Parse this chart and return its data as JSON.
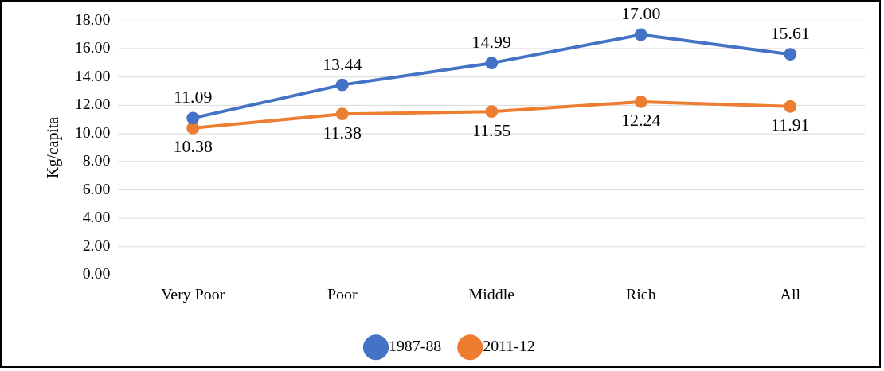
{
  "chart_data": {
    "type": "line",
    "ylabel": "Kg/capita",
    "categories": [
      "Very Poor",
      "Poor",
      "Middle",
      "Rich",
      "All"
    ],
    "series": [
      {
        "name": "1987-88",
        "color": "#4472c4",
        "values": [
          11.09,
          13.44,
          14.99,
          17.0,
          15.61
        ],
        "value_labels": [
          "11.09",
          "13.44",
          "14.99",
          "17.00",
          "15.61"
        ]
      },
      {
        "name": "2011-12",
        "color": "#ed7d31",
        "values": [
          10.38,
          11.38,
          11.55,
          12.24,
          11.91
        ],
        "value_labels": [
          "10.38",
          "11.38",
          "11.55",
          "12.24",
          "11.91"
        ]
      }
    ],
    "ylim": [
      0,
      18
    ],
    "yticks": [
      {
        "value": 0,
        "label": "0.00"
      },
      {
        "value": 2,
        "label": "2.00"
      },
      {
        "value": 4,
        "label": "4.00"
      },
      {
        "value": 6,
        "label": "6.00"
      },
      {
        "value": 8,
        "label": "8.00"
      },
      {
        "value": 10,
        "label": "10.00"
      },
      {
        "value": 12,
        "label": "12.00"
      },
      {
        "value": 14,
        "label": "14.00"
      },
      {
        "value": 16,
        "label": "16.00"
      },
      {
        "value": 18,
        "label": "18.00"
      }
    ],
    "grid": "y",
    "legend": "bottom",
    "marker": "circle",
    "line_style": "solid"
  }
}
